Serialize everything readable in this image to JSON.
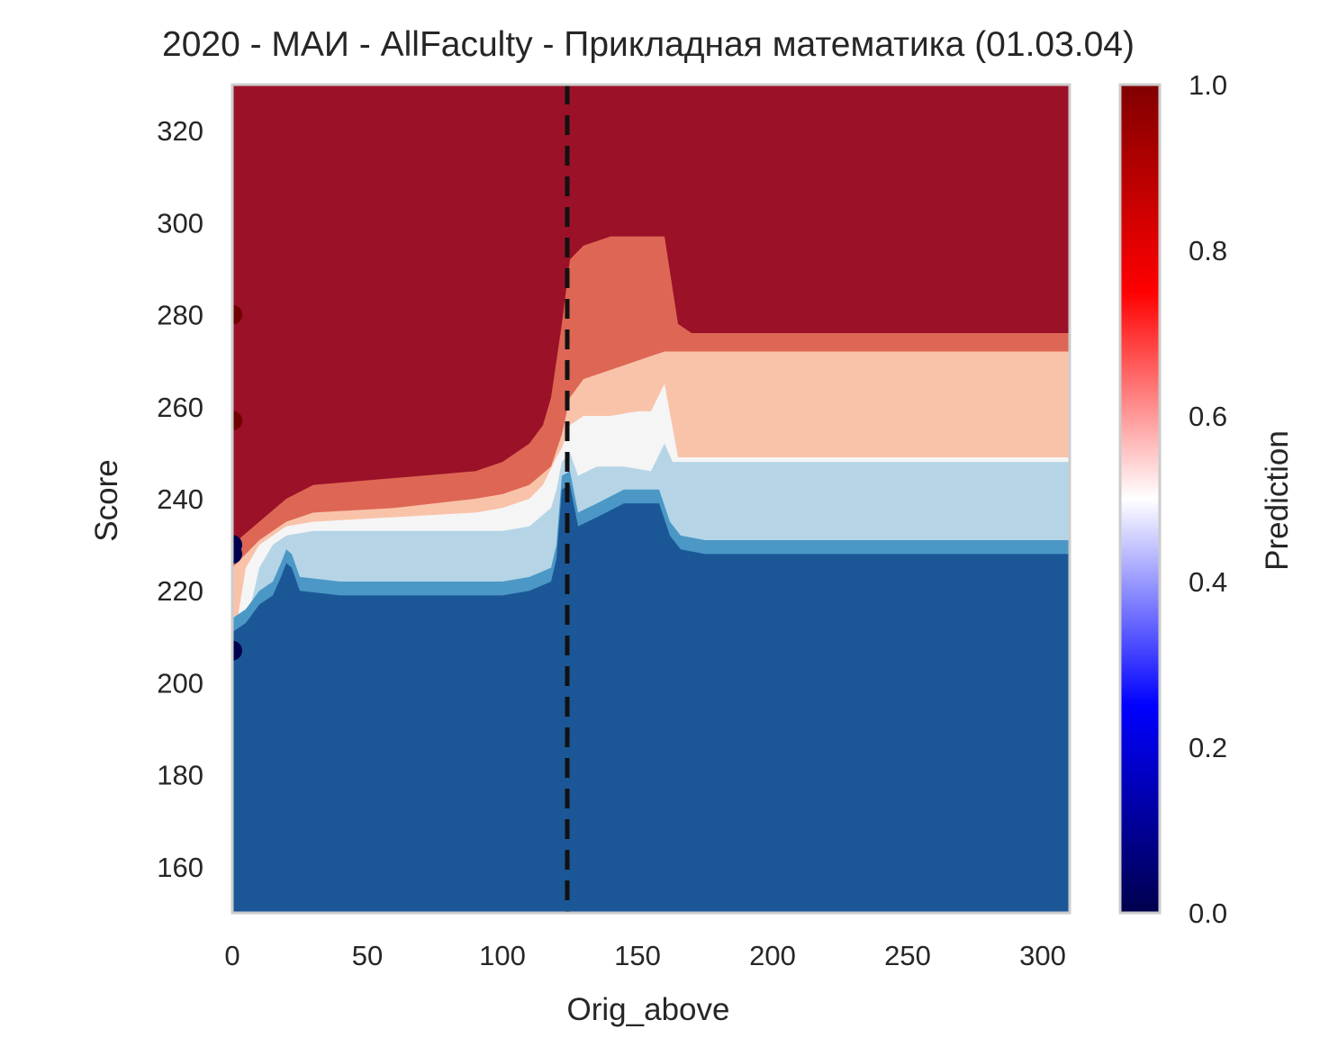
{
  "chart_data": {
    "type": "heatmap",
    "title": "2020 - МАИ - AllFaculty - Прикладная математика (01.03.04)",
    "xlabel": "Orig_above",
    "ylabel": "Score",
    "xlim": [
      0,
      310
    ],
    "ylim": [
      150,
      330
    ],
    "x_ticks": [
      0,
      50,
      100,
      150,
      200,
      250,
      300
    ],
    "y_ticks": [
      160,
      180,
      200,
      220,
      240,
      260,
      280,
      300,
      320
    ],
    "grid": false,
    "colorbar": {
      "label": "Prediction",
      "range": [
        0,
        1
      ],
      "ticks": [
        0.0,
        0.2,
        0.4,
        0.6,
        0.8,
        1.0
      ],
      "tick_labels": [
        "0.0",
        "0.2",
        "0.4",
        "0.6",
        "0.8",
        "1.0"
      ],
      "colormap": "seismic",
      "stops": [
        "#00004c",
        "#0000ff",
        "#ffffff",
        "#ff0000",
        "#800000"
      ]
    },
    "contour_levels": [
      {
        "range": [
          0.0,
          0.15
        ],
        "color": "#1b5797"
      },
      {
        "range": [
          0.15,
          0.3
        ],
        "color": "#4b98c6"
      },
      {
        "range": [
          0.3,
          0.45
        ],
        "color": "#b5d5e7"
      },
      {
        "range": [
          0.45,
          0.55
        ],
        "color": "#f5f5f5"
      },
      {
        "range": [
          0.55,
          0.7
        ],
        "color": "#f9c3aa"
      },
      {
        "range": [
          0.7,
          0.85
        ],
        "color": "#dd6754"
      },
      {
        "range": [
          0.85,
          1.0
        ],
        "color": "#9b1128"
      }
    ],
    "boundaries": [
      {
        "name": "b1",
        "points": [
          [
            0,
            214
          ],
          [
            5,
            216
          ],
          [
            10,
            220
          ],
          [
            15,
            222
          ],
          [
            18,
            226
          ],
          [
            20,
            229
          ],
          [
            22,
            228
          ],
          [
            25,
            223
          ],
          [
            40,
            222
          ],
          [
            80,
            222
          ],
          [
            100,
            222
          ],
          [
            110,
            223
          ],
          [
            118,
            225
          ],
          [
            120,
            230
          ],
          [
            122,
            245
          ],
          [
            125,
            246
          ],
          [
            128,
            237
          ],
          [
            135,
            239
          ],
          [
            145,
            242
          ],
          [
            158,
            242
          ],
          [
            162,
            235
          ],
          [
            166,
            232
          ],
          [
            175,
            231
          ],
          [
            310,
            231
          ]
        ]
      },
      {
        "name": "b2",
        "points": [
          [
            0,
            210
          ],
          [
            5,
            212
          ],
          [
            10,
            225
          ],
          [
            15,
            230
          ],
          [
            20,
            232
          ],
          [
            30,
            233
          ],
          [
            60,
            233
          ],
          [
            90,
            233
          ],
          [
            100,
            233
          ],
          [
            110,
            234
          ],
          [
            118,
            238
          ],
          [
            120,
            242
          ],
          [
            122,
            248
          ],
          [
            125,
            250
          ],
          [
            128,
            245
          ],
          [
            135,
            247
          ],
          [
            145,
            247
          ],
          [
            155,
            246
          ],
          [
            160,
            252
          ],
          [
            163,
            248
          ],
          [
            168,
            248
          ],
          [
            310,
            248
          ]
        ]
      },
      {
        "name": "b3",
        "points": [
          [
            0,
            207
          ],
          [
            5,
            225
          ],
          [
            10,
            230
          ],
          [
            20,
            234
          ],
          [
            30,
            235
          ],
          [
            60,
            236
          ],
          [
            90,
            237
          ],
          [
            100,
            238
          ],
          [
            110,
            240
          ],
          [
            115,
            243
          ],
          [
            120,
            249
          ],
          [
            122,
            251
          ],
          [
            125,
            256
          ],
          [
            130,
            258
          ],
          [
            140,
            258
          ],
          [
            150,
            259
          ],
          [
            155,
            259
          ],
          [
            160,
            265
          ],
          [
            165,
            249
          ],
          [
            310,
            249
          ]
        ]
      },
      {
        "name": "b4",
        "points": [
          [
            0,
            225
          ],
          [
            10,
            231
          ],
          [
            20,
            235
          ],
          [
            30,
            237
          ],
          [
            60,
            238
          ],
          [
            90,
            240
          ],
          [
            100,
            241
          ],
          [
            110,
            243
          ],
          [
            118,
            247
          ],
          [
            122,
            254
          ],
          [
            125,
            262
          ],
          [
            130,
            266
          ],
          [
            140,
            268
          ],
          [
            150,
            270
          ],
          [
            155,
            271
          ],
          [
            160,
            272
          ],
          [
            165,
            272
          ],
          [
            310,
            272
          ]
        ]
      },
      {
        "name": "b5",
        "points": [
          [
            0,
            230
          ],
          [
            10,
            235
          ],
          [
            20,
            240
          ],
          [
            30,
            243
          ],
          [
            50,
            244
          ],
          [
            70,
            245
          ],
          [
            90,
            246
          ],
          [
            100,
            248
          ],
          [
            110,
            252
          ],
          [
            115,
            256
          ],
          [
            118,
            262
          ],
          [
            122,
            278
          ],
          [
            125,
            292
          ],
          [
            130,
            295
          ],
          [
            140,
            297
          ],
          [
            150,
            297
          ],
          [
            155,
            297
          ],
          [
            160,
            297
          ],
          [
            165,
            278
          ],
          [
            170,
            276
          ],
          [
            310,
            276
          ]
        ]
      }
    ],
    "threshold_line": {
      "x": 124,
      "style": "dashed",
      "color": "#000000"
    },
    "points": [
      {
        "x": 0,
        "y": 280,
        "value": 1.0
      },
      {
        "x": 0,
        "y": 257,
        "value": 1.0
      },
      {
        "x": 0,
        "y": 230,
        "value": 0.0
      },
      {
        "x": 0,
        "y": 228,
        "value": 0.0
      },
      {
        "x": 0,
        "y": 207,
        "value": 0.0
      }
    ]
  }
}
